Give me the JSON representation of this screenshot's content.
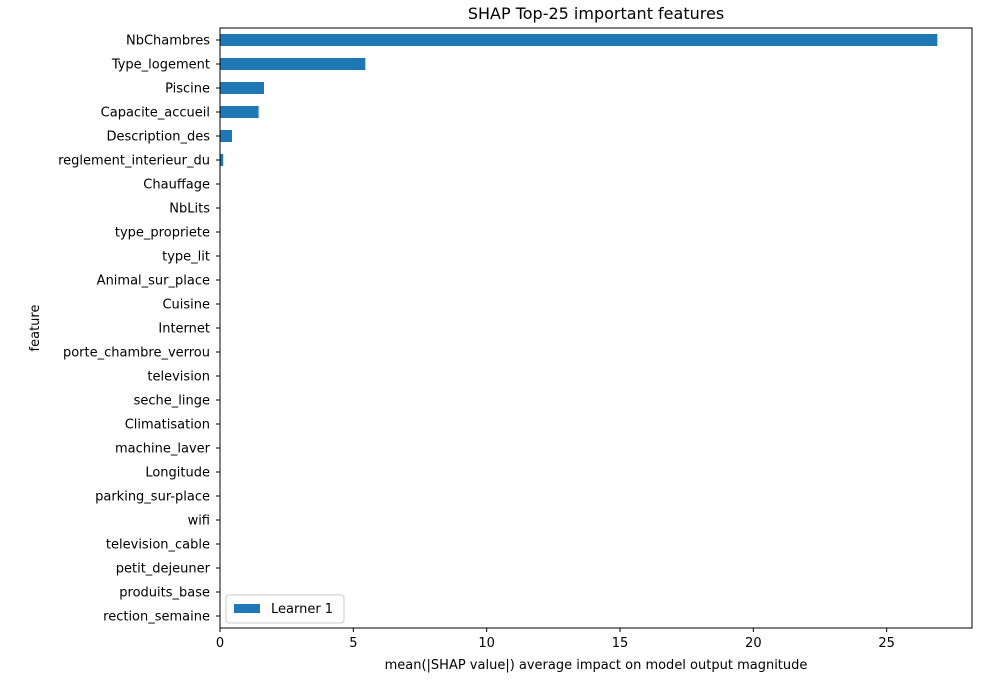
{
  "chart_data": {
    "type": "bar",
    "orientation": "horizontal",
    "title": "SHAP Top-25 important features",
    "xlabel": "mean(|SHAP value|) average impact on model output magnitude",
    "ylabel": "feature",
    "xlim": [
      0,
      28.2
    ],
    "xticks": [
      0,
      5,
      10,
      15,
      20,
      25
    ],
    "grid": false,
    "legend_position": "lower-left",
    "bar_color": "#1f77b4",
    "categories": [
      "NbChambres",
      "Type_logement",
      "Piscine",
      "Capacite_accueil",
      "Description_des",
      "reglement_interieur_du",
      "Chauffage",
      "NbLits",
      "type_propriete",
      "type_lit",
      "Animal_sur_place",
      "Cuisine",
      "Internet",
      "porte_chambre_verrou",
      "television",
      "seche_linge",
      "Climatisation",
      "machine_laver",
      "Longitude",
      "parking_sur-place",
      "wifi",
      "television_cable",
      "petit_dejeuner",
      "produits_base",
      "rection_semaine"
    ],
    "series": [
      {
        "name": "Learner 1",
        "color": "#1f77b4",
        "values": [
          26.9,
          5.45,
          1.65,
          1.45,
          0.45,
          0.12,
          0.02,
          0.02,
          0.01,
          0.01,
          0.01,
          0.01,
          0.01,
          0.01,
          0.01,
          0.01,
          0.01,
          0.01,
          0.01,
          0.01,
          0.01,
          0.01,
          0.01,
          0.01,
          0.01
        ]
      }
    ]
  }
}
